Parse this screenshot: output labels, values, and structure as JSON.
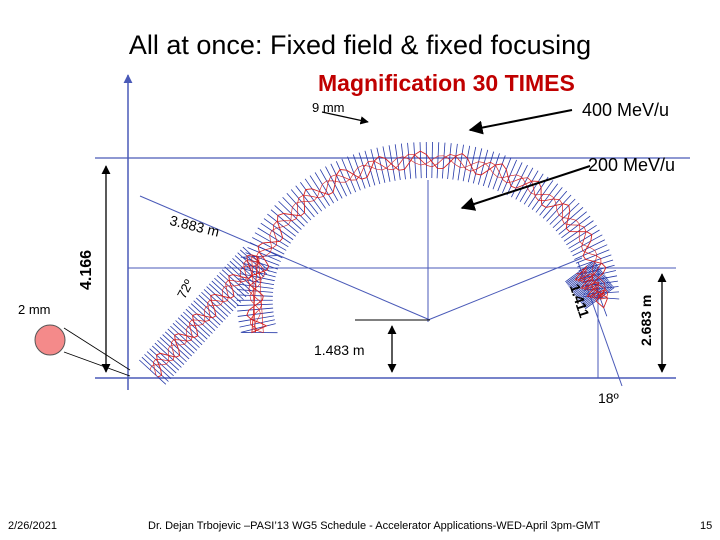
{
  "slide": {
    "title": "All at once: Fixed field & fixed focusing",
    "subtitle": "Magnification 30 TIMES",
    "page_number": "15"
  },
  "labels": {
    "beam_size_top": "9 mm",
    "beam_size_left": "2 mm",
    "energy_high": "400 MeV/u",
    "energy_low": "200 MeV/u",
    "radius": "3.883 m",
    "angle_main": "72º",
    "height": "4.166",
    "chord": "1.411",
    "offset": "1.483 m",
    "side_height": "2.683 m",
    "angle_small": "18º"
  },
  "footer": {
    "date": "2/26/2021",
    "credit": "Dr. Dejan Trbojevic –PASI’13 WG5 Schedule - Accelerator Applications-WED-April 3pm-GMT"
  },
  "colors": {
    "magnet_blue": "#2438a8",
    "orbit_red": "#d42020",
    "line_blue": "#4a5ab8",
    "beam_spot": "#f48a8a"
  }
}
